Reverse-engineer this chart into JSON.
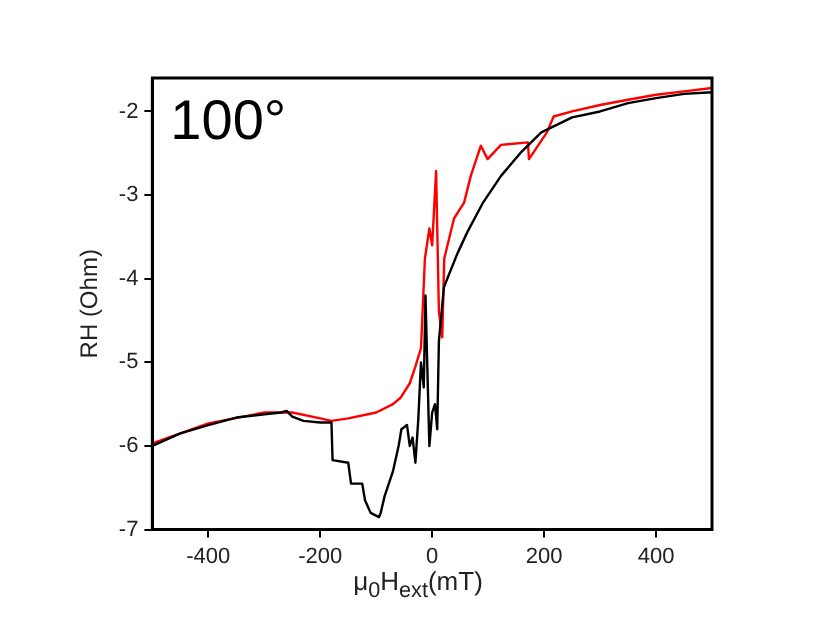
{
  "chart_data": {
    "type": "line",
    "xlabel": "μ$_{0}$H$_{ext}$(mT)",
    "ylabel": "RH (Ohm)",
    "annotations": [
      "100°"
    ],
    "xlim": [
      -500,
      500
    ],
    "xticks": [
      -400,
      -200,
      0,
      200,
      400
    ],
    "ylim": [
      -7,
      -1.6
    ],
    "yticks": [
      -7,
      -6,
      -5,
      -4,
      -3,
      -2
    ],
    "grid": false,
    "legend": false,
    "marker": "none",
    "line_style": "solid",
    "series": [
      {
        "color": "#000000",
        "x": [
          -500,
          -450,
          -400,
          -350,
          -300,
          -270,
          -260,
          -250,
          -230,
          -200,
          -180,
          -178,
          -150,
          -145,
          -125,
          -120,
          -110,
          -95,
          -92,
          -85,
          -70,
          -60,
          -55,
          -45,
          -40,
          -35,
          -30,
          -25,
          -20,
          -15,
          -12,
          -5,
          0,
          5,
          9,
          12,
          21,
          30,
          45,
          63,
          90,
          123,
          160,
          195,
          250,
          300,
          350,
          400,
          450,
          500
        ],
        "values": [
          -6.0,
          -5.85,
          -5.75,
          -5.66,
          -5.62,
          -5.6,
          -5.58,
          -5.65,
          -5.7,
          -5.72,
          -5.72,
          -6.17,
          -6.2,
          -6.45,
          -6.45,
          -6.65,
          -6.8,
          -6.85,
          -6.8,
          -6.6,
          -6.3,
          -6.0,
          -5.8,
          -5.75,
          -6.0,
          -5.9,
          -6.2,
          -5.7,
          -5.0,
          -5.3,
          -4.2,
          -6.0,
          -5.6,
          -5.5,
          -5.8,
          -4.75,
          -4.1,
          -3.95,
          -3.7,
          -3.44,
          -3.1,
          -2.77,
          -2.48,
          -2.25,
          -2.07,
          -2.0,
          -1.9,
          -1.84,
          -1.79,
          -1.77
        ]
      },
      {
        "color": "#ff0000",
        "x": [
          -500,
          -400,
          -300,
          -250,
          -200,
          -180,
          -150,
          -100,
          -70,
          -56,
          -40,
          -30,
          -20,
          -13,
          -5,
          0,
          7,
          12,
          18,
          21.5,
          39,
          57,
          69,
          87,
          99,
          123,
          171,
          173,
          205,
          217,
          250,
          302,
          350,
          400,
          450,
          500
        ],
        "values": [
          -5.97,
          -5.73,
          -5.6,
          -5.6,
          -5.67,
          -5.7,
          -5.67,
          -5.6,
          -5.5,
          -5.42,
          -5.25,
          -5.05,
          -4.83,
          -3.76,
          -3.4,
          -3.6,
          -2.71,
          -4.39,
          -4.7,
          -3.76,
          -3.28,
          -3.09,
          -2.77,
          -2.41,
          -2.57,
          -2.4,
          -2.37,
          -2.57,
          -2.25,
          -2.06,
          -2.0,
          -1.92,
          -1.86,
          -1.8,
          -1.76,
          -1.72
        ]
      }
    ]
  }
}
